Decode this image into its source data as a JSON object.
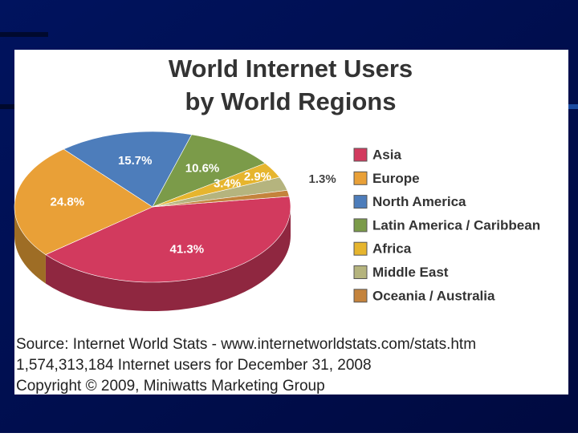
{
  "chart_data": {
    "type": "pie3d",
    "title": "World Internet Users",
    "subtitle": "by World Regions",
    "categories": [
      "Asia",
      "Europe",
      "North America",
      "Latin America / Caribbean",
      "Africa",
      "Middle East",
      "Oceania / Australia"
    ],
    "values": [
      41.3,
      24.8,
      15.7,
      10.6,
      3.4,
      2.9,
      1.3
    ],
    "value_labels": [
      "41.3%",
      "24.8%",
      "15.7%",
      "10.6%",
      "3.4%",
      "2.9%",
      "1.3%"
    ],
    "colors": [
      "#d23a5e",
      "#e9a037",
      "#4d7dbb",
      "#7b9b49",
      "#e6b52e",
      "#b5b47e",
      "#c4833c"
    ],
    "legend": "right",
    "source": [
      "Source: Internet World Stats -  www.internetworldstats.com/stats.htm",
      "1,574,313,184 Internet users for December 31, 2008",
      "Copyright © 2009, Miniwatts Marketing Group"
    ]
  }
}
